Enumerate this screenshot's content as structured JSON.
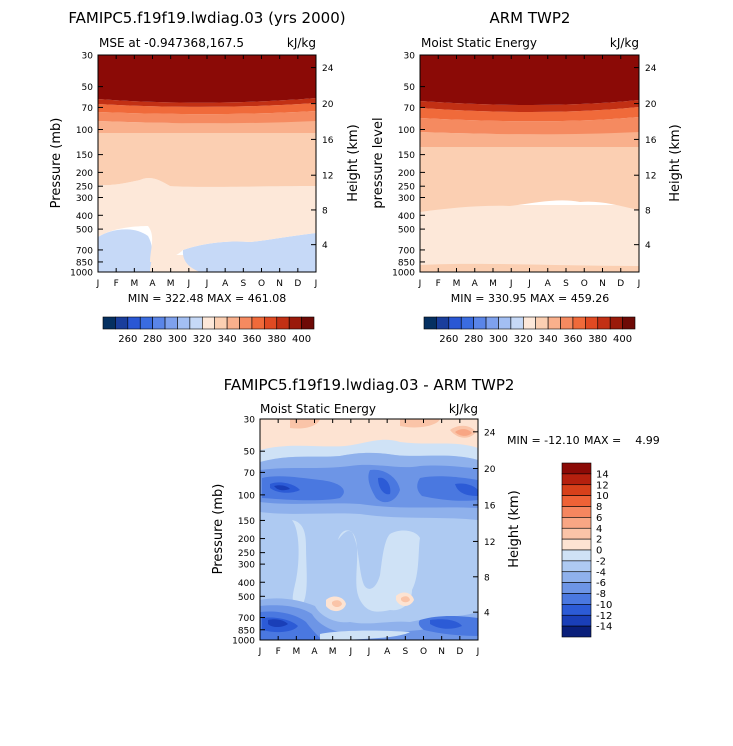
{
  "months": [
    "J",
    "F",
    "M",
    "A",
    "M",
    "J",
    "J",
    "A",
    "S",
    "O",
    "N",
    "D",
    "J"
  ],
  "pressure_ticks": [
    "30",
    "50",
    "70",
    "100",
    "150",
    "200",
    "250",
    "300",
    "400",
    "500",
    "700",
    "850",
    "1000"
  ],
  "height_ticks": [
    "24",
    "20",
    "16",
    "12",
    "8",
    "4"
  ],
  "chart_data": [
    {
      "type": "contour",
      "title": "FAMIPC5.f19f19.lwdiag.03 (yrs 2000)",
      "subtitle_left": "MSE at -0.947368,167.5",
      "subtitle_right": "kJ/kg",
      "ylabel": "Pressure (mb)",
      "y2label": "Height (km)",
      "stats": "MIN = 322.48  MAX = 461.08",
      "min": 322.48,
      "max": 461.08,
      "band_values_by_pressure": {
        "1000": 338,
        "850": 334,
        "700": 329,
        "500": 329,
        "400": 333,
        "300": 336,
        "250": 340,
        "200": 346,
        "150": 349,
        "100": 355,
        "70": 372,
        "50": 400,
        "30": 455
      }
    },
    {
      "type": "contour",
      "title": "ARM TWP2",
      "subtitle_left": "Moist Static Energy",
      "subtitle_right": "kJ/kg",
      "ylabel": "pressure level",
      "y2label": "Height (km)",
      "stats": "MIN = 330.95  MAX = 459.26",
      "min": 330.95,
      "max": 459.26,
      "band_values_by_pressure": {
        "1000": 342,
        "850": 337,
        "700": 336,
        "500": 337,
        "400": 338,
        "300": 342,
        "250": 345,
        "200": 348,
        "150": 351,
        "100": 360,
        "70": 380,
        "50": 405,
        "30": 455
      }
    },
    {
      "type": "contour",
      "title": "FAMIPC5.f19f19.lwdiag.03 - ARM TWP2",
      "subtitle_left": "Moist Static Energy",
      "subtitle_right": "kJ/kg",
      "ylabel": "Pressure (mb)",
      "y2label": "Height (km)",
      "stats_min_label": "MIN = -12.10",
      "stats_max_label": "MAX =    4.99",
      "min": -12.1,
      "max": 4.99
    }
  ],
  "colorbar_abs": {
    "labels": [
      "260",
      "280",
      "300",
      "320",
      "340",
      "360",
      "380",
      "400"
    ],
    "colors": [
      "#053061",
      "#1a3e9c",
      "#2a57d4",
      "#3a6ce0",
      "#5a85e8",
      "#7ea1ee",
      "#a3bff3",
      "#c6d9f7",
      "#fde8d9",
      "#fbcfb2",
      "#f9b08c",
      "#f58a60",
      "#f06a3a",
      "#e04a22",
      "#c23014",
      "#9a1a0a",
      "#6e0a06"
    ]
  },
  "colorbar_diff": {
    "labels": [
      "14",
      "12",
      "10",
      "8",
      "6",
      "4",
      "2",
      "0",
      "-2",
      "-4",
      "-6",
      "-8",
      "-10",
      "-12",
      "-14"
    ],
    "colors": [
      "#8b0a06",
      "#b5200e",
      "#d7401a",
      "#ee6236",
      "#f5865f",
      "#f8a684",
      "#fac4a8",
      "#fde3d2",
      "#cfe2f6",
      "#aecaf2",
      "#8fb1ec",
      "#6d95e6",
      "#4a78e0",
      "#2c5bd6",
      "#1a3fb8",
      "#0a1f7a"
    ]
  }
}
